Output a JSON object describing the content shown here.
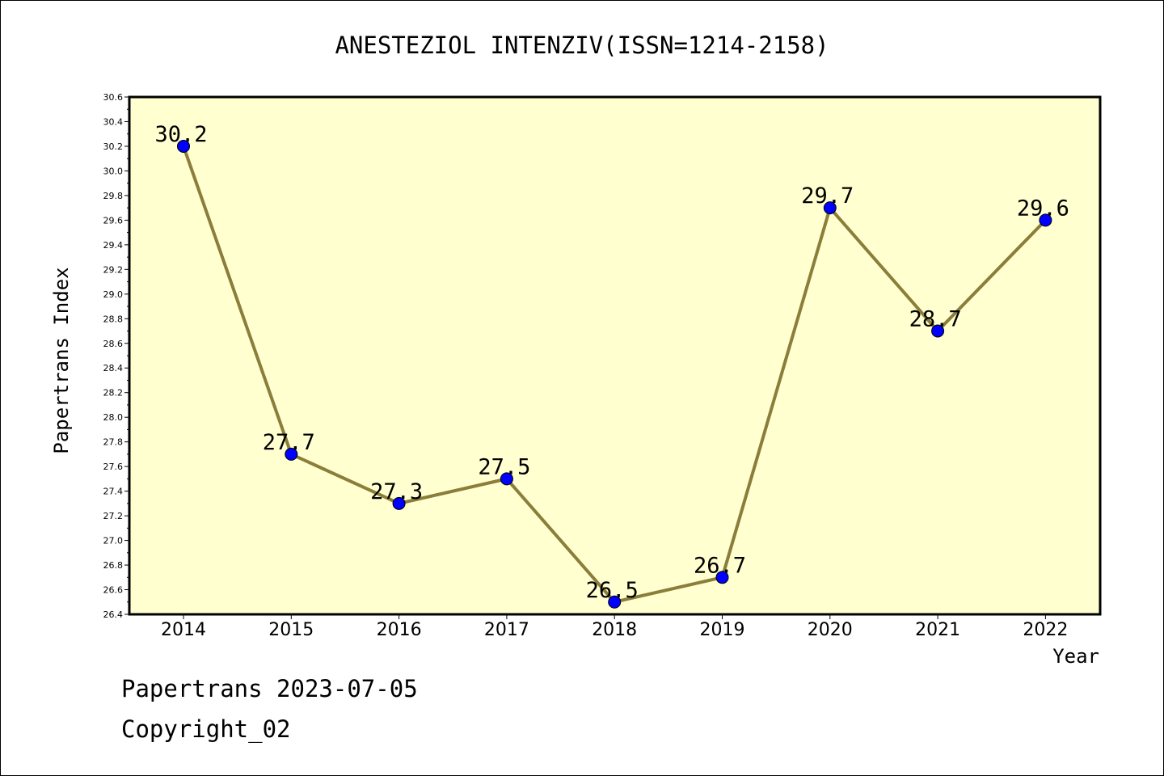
{
  "chart_data": {
    "type": "line",
    "title": "ANESTEZIOL INTENZIV(ISSN=1214-2158)",
    "xlabel": "Year",
    "ylabel": "Papertrans Index",
    "x": [
      "2014",
      "2015",
      "2016",
      "2017",
      "2018",
      "2019",
      "2020",
      "2021",
      "2022"
    ],
    "values": [
      30.2,
      27.7,
      27.3,
      27.5,
      26.5,
      26.7,
      29.7,
      28.7,
      29.6
    ],
    "data_labels": [
      "30.2",
      "27.7",
      "27.3",
      "27.5",
      "26.5",
      "26.7",
      "29.7",
      "28.7",
      "29.6"
    ],
    "ylim": [
      26.4,
      30.6
    ],
    "yticks": [
      "26.4",
      "26.6",
      "26.8",
      "27.0",
      "27.2",
      "27.4",
      "27.6",
      "27.8",
      "28.0",
      "28.2",
      "28.4",
      "28.6",
      "28.8",
      "29.0",
      "29.2",
      "29.4",
      "29.6",
      "29.8",
      "30.0",
      "30.2",
      "30.4",
      "30.6"
    ],
    "grid": false,
    "colors": {
      "plot_bg": "#ffffd0",
      "line": "#8b7d3a",
      "marker": "#0000ff",
      "axis": "#000000"
    }
  },
  "footer": {
    "line1": "Papertrans 2023-07-05",
    "line2": "Copyright_02"
  }
}
